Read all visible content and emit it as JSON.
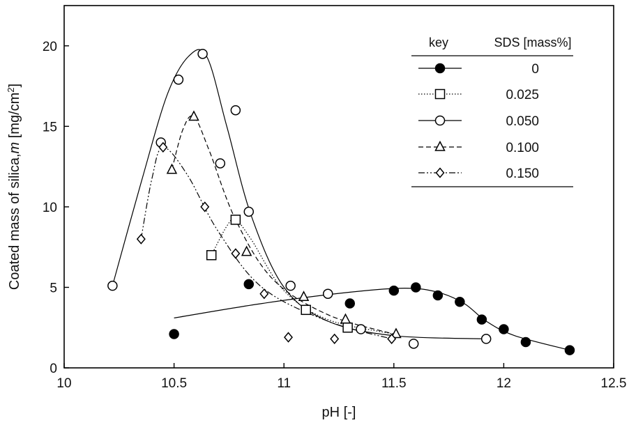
{
  "chart_data": {
    "type": "scatter",
    "xlabel": "pH  [-]",
    "ylabel_main": "Coated mass of silica,",
    "ylabel_var": "m",
    "ylabel_unit": " [mg/cm",
    "ylabel_sup": "2",
    "ylabel_close": "]",
    "xlim": [
      10,
      12.5
    ],
    "ylim": [
      0,
      22.5
    ],
    "x_ticks": [
      10,
      10.5,
      11,
      11.5,
      12,
      12.5
    ],
    "x_tick_labels": [
      "10",
      "10.5",
      "11",
      "11.5",
      "12",
      "12.5"
    ],
    "y_ticks": [
      0,
      5,
      10,
      15,
      20
    ],
    "y_tick_labels": [
      "0",
      "5",
      "10",
      "15",
      "20"
    ],
    "grid": false,
    "legend": {
      "placement": "top-right",
      "key_header": "key",
      "value_header": "SDS [mass%]"
    },
    "series": [
      {
        "name": "0",
        "marker": "filled-circle",
        "line": "solid",
        "points": [
          [
            10.5,
            2.1
          ],
          [
            10.84,
            5.2
          ],
          [
            11.3,
            4.0
          ],
          [
            11.5,
            4.8
          ],
          [
            11.6,
            5.0
          ],
          [
            11.7,
            4.5
          ],
          [
            11.8,
            4.1
          ],
          [
            11.9,
            3.0
          ],
          [
            12.0,
            2.4
          ],
          [
            12.1,
            1.6
          ],
          [
            12.3,
            1.1
          ]
        ],
        "curve": [
          [
            10.5,
            3.1
          ],
          [
            10.9,
            4.0
          ],
          [
            11.3,
            4.7
          ],
          [
            11.55,
            4.95
          ],
          [
            11.7,
            4.7
          ],
          [
            11.82,
            4.0
          ],
          [
            11.92,
            2.9
          ],
          [
            12.05,
            2.0
          ],
          [
            12.3,
            1.1
          ]
        ]
      },
      {
        "name": "0.025",
        "marker": "open-square",
        "line": "dotted",
        "points": [
          [
            10.67,
            7.0
          ],
          [
            10.78,
            9.2
          ],
          [
            11.1,
            3.6
          ],
          [
            11.29,
            2.5
          ]
        ],
        "curve": [
          [
            10.67,
            7.0
          ],
          [
            10.74,
            8.8
          ],
          [
            10.78,
            9.2
          ],
          [
            10.85,
            8.0
          ],
          [
            11.0,
            4.8
          ],
          [
            11.2,
            3.0
          ],
          [
            11.5,
            2.1
          ]
        ]
      },
      {
        "name": "0.050",
        "marker": "open-circle",
        "line": "solid",
        "points": [
          [
            10.22,
            5.1
          ],
          [
            10.44,
            14.0
          ],
          [
            10.52,
            17.9
          ],
          [
            10.63,
            19.5
          ],
          [
            10.71,
            12.7
          ],
          [
            10.78,
            16.0
          ],
          [
            10.84,
            9.7
          ],
          [
            11.03,
            5.1
          ],
          [
            11.2,
            4.6
          ],
          [
            11.35,
            2.4
          ],
          [
            11.59,
            1.5
          ],
          [
            11.92,
            1.8
          ]
        ],
        "curve": [
          [
            10.22,
            5.1
          ],
          [
            10.35,
            11.5
          ],
          [
            10.47,
            17.0
          ],
          [
            10.57,
            19.4
          ],
          [
            10.65,
            19.3
          ],
          [
            10.74,
            15.0
          ],
          [
            10.85,
            9.5
          ],
          [
            11.0,
            5.0
          ],
          [
            11.2,
            2.9
          ],
          [
            11.5,
            2.0
          ],
          [
            11.92,
            1.8
          ]
        ]
      },
      {
        "name": "0.100",
        "marker": "open-triangle",
        "line": "dashed",
        "points": [
          [
            10.49,
            12.3
          ],
          [
            10.59,
            15.6
          ],
          [
            10.83,
            7.2
          ],
          [
            11.09,
            4.4
          ],
          [
            11.28,
            3.0
          ],
          [
            11.51,
            2.1
          ]
        ],
        "curve": [
          [
            10.49,
            12.3
          ],
          [
            10.54,
            14.8
          ],
          [
            10.59,
            15.6
          ],
          [
            10.66,
            13.5
          ],
          [
            10.78,
            9.2
          ],
          [
            10.95,
            5.5
          ],
          [
            11.2,
            3.3
          ],
          [
            11.5,
            2.1
          ]
        ]
      },
      {
        "name": "0.150",
        "marker": "open-diamond",
        "line": "dash-dot-dot",
        "points": [
          [
            10.35,
            8.0
          ],
          [
            10.45,
            13.7
          ],
          [
            10.64,
            10.0
          ],
          [
            10.78,
            7.1
          ],
          [
            10.91,
            4.6
          ],
          [
            11.02,
            1.9
          ],
          [
            11.23,
            1.8
          ],
          [
            11.49,
            1.8
          ]
        ],
        "curve": [
          [
            10.35,
            8.0
          ],
          [
            10.4,
            11.8
          ],
          [
            10.45,
            13.7
          ],
          [
            10.56,
            12.0
          ],
          [
            10.7,
            8.5
          ],
          [
            10.9,
            5.0
          ],
          [
            11.2,
            2.9
          ],
          [
            11.49,
            1.8
          ]
        ]
      }
    ]
  }
}
